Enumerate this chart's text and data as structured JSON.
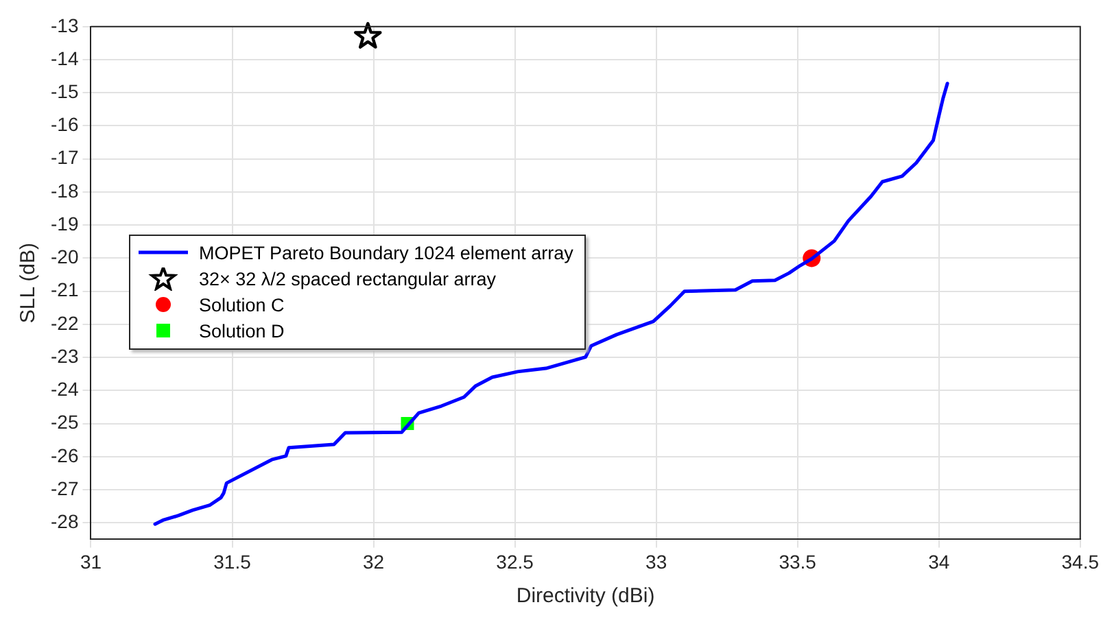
{
  "chart_data": {
    "type": "line",
    "xlabel": "Directivity (dBi)",
    "ylabel": "SLL (dB)",
    "xlim": [
      31,
      34.5
    ],
    "xticks": [
      31,
      31.5,
      32,
      32.5,
      33,
      33.5,
      34,
      34.5
    ],
    "ylim": [
      -28.5,
      -13
    ],
    "yticks": [
      -28,
      -27,
      -26,
      -25,
      -24,
      -23,
      -22,
      -21,
      -20,
      -19,
      -18,
      -17,
      -16,
      -15,
      -14,
      -13
    ],
    "grid": true,
    "legend": "left",
    "line_style": "solid",
    "series": [
      {
        "name": "MOPET Pareto Boundary 1024 element array",
        "type": "line",
        "marker": "none",
        "color": "#0000ff",
        "x": [
          31.227,
          31.255,
          31.31,
          31.36,
          31.42,
          31.46,
          31.47,
          31.48,
          31.64,
          31.69,
          31.7,
          31.86,
          31.9,
          32.1,
          32.16,
          32.24,
          32.32,
          32.36,
          32.42,
          32.51,
          32.61,
          32.75,
          32.77,
          32.86,
          32.99,
          33.05,
          33.1,
          33.28,
          33.34,
          33.42,
          33.47,
          33.51,
          33.55,
          33.63,
          33.68,
          33.76,
          33.8,
          33.87,
          33.92,
          33.98,
          34,
          34.015,
          34.03
        ],
        "values": [
          -28.04,
          -27.92,
          -27.78,
          -27.62,
          -27.47,
          -27.24,
          -27.1,
          -26.8,
          -26.09,
          -25.98,
          -25.73,
          -25.63,
          -25.28,
          -25.26,
          -24.68,
          -24.47,
          -24.2,
          -23.87,
          -23.6,
          -23.43,
          -23.33,
          -22.99,
          -22.65,
          -22.31,
          -21.91,
          -21.44,
          -21,
          -20.96,
          -20.69,
          -20.67,
          -20.45,
          -20.22,
          -20.02,
          -19.48,
          -18.87,
          -18.13,
          -17.69,
          -17.52,
          -17.12,
          -16.44,
          -15.7,
          -15.16,
          -14.72
        ]
      },
      {
        "name": "32× 32 λ/2 spaced rectangular array",
        "type": "scatter",
        "marker": "star",
        "color": "#000000",
        "x": [
          31.98
        ],
        "values": [
          -13.3
        ]
      },
      {
        "name": "Solution C",
        "type": "scatter",
        "marker": "circle",
        "color": "#ff0000",
        "x": [
          33.55
        ],
        "values": [
          -20
        ]
      },
      {
        "name": "Solution D",
        "type": "scatter",
        "marker": "square",
        "color": "#00ff00",
        "x": [
          32.12
        ],
        "values": [
          -25
        ]
      }
    ]
  }
}
